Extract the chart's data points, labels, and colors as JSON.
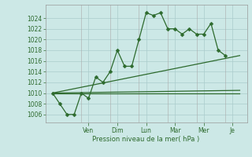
{
  "background_color": "#cce8e6",
  "grid_color": "#aacccc",
  "line_color": "#2d6a2d",
  "marker_color": "#2d6a2d",
  "xlabel_text": "Pression niveau de la mer( hPa )",
  "ylim": [
    1004.5,
    1026.5
  ],
  "yticks": [
    1006,
    1008,
    1010,
    1012,
    1014,
    1016,
    1018,
    1020,
    1022,
    1024
  ],
  "xlim": [
    -0.5,
    13.5
  ],
  "x_day_labels": [
    "Ven",
    "Dim",
    "Lun",
    "Mar",
    "Mer",
    "Je"
  ],
  "x_day_positions": [
    2.5,
    4.5,
    6.5,
    8.5,
    10.5,
    12.5
  ],
  "zigzag": {
    "x": [
      0,
      0.5,
      1.0,
      1.5,
      2.0,
      2.5,
      3.0,
      3.5,
      4.0,
      4.5,
      5.0,
      5.5,
      6.0,
      6.5,
      7.0,
      7.5,
      8.0,
      8.5,
      9.0,
      9.5,
      10.0,
      10.5,
      11.0,
      11.5,
      12.0
    ],
    "y": [
      1010,
      1008,
      1006,
      1006,
      1010,
      1009,
      1013,
      1012,
      1014,
      1018,
      1015,
      1015,
      1020,
      1025,
      1024.5,
      1025,
      1022,
      1022,
      1021,
      1022,
      1021,
      1021,
      1023,
      1018,
      1017
    ]
  },
  "upper_band": {
    "x": [
      0,
      13
    ],
    "y": [
      1010,
      1017
    ]
  },
  "lower_band": {
    "x": [
      0,
      13
    ],
    "y": [
      1010,
      1010
    ]
  },
  "mid_band": {
    "x": [
      0,
      13
    ],
    "y": [
      1010,
      1010.5
    ]
  }
}
